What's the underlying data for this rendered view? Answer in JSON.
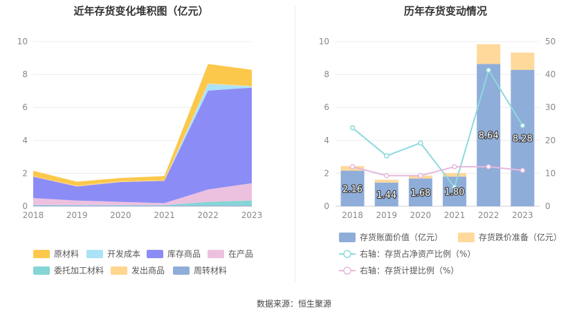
{
  "source_label": "数据来源：恒生聚源",
  "chart_data": [
    {
      "type": "area",
      "title": "近年存货变化堆积图（亿元）",
      "x": [
        "2018",
        "2019",
        "2020",
        "2021",
        "2022",
        "2023"
      ],
      "ylim": [
        0,
        10
      ],
      "yticks": [
        0,
        2,
        4,
        6,
        8,
        10
      ],
      "grid": true,
      "legend_position": "bottom",
      "series": [
        {
          "name": "周转材料",
          "color": "#8fadd9",
          "values": [
            0.06,
            0.05,
            0.05,
            0.05,
            0.05,
            0.05
          ]
        },
        {
          "name": "委托加工材料",
          "color": "#84d5d5",
          "values": [
            0.02,
            0.02,
            0.02,
            0.02,
            0.22,
            0.3
          ]
        },
        {
          "name": "在产品",
          "color": "#ecc1e0",
          "values": [
            0.42,
            0.28,
            0.2,
            0.12,
            0.75,
            1.05
          ]
        },
        {
          "name": "库存商品",
          "color": "#8c8cf6",
          "values": [
            1.3,
            0.85,
            1.2,
            1.35,
            6.0,
            5.8
          ]
        },
        {
          "name": "开发成本",
          "color": "#abe2f7",
          "values": [
            0.0,
            0.0,
            0.0,
            0.0,
            0.4,
            0.08
          ]
        },
        {
          "name": "发出商品",
          "color": "#ffd68f",
          "values": [
            0.02,
            0.05,
            0.05,
            0.04,
            0.05,
            0.02
          ]
        },
        {
          "name": "原材料",
          "color": "#fcc84b",
          "values": [
            0.33,
            0.24,
            0.2,
            0.25,
            1.17,
            0.98
          ]
        }
      ],
      "legend_order": [
        "原材料",
        "开发成本",
        "库存商品",
        "在产品",
        "委托加工材料",
        "发出商品",
        "周转材料"
      ]
    },
    {
      "type": "bar",
      "title": "历年存货变动情况",
      "categories": [
        "2018",
        "2019",
        "2020",
        "2021",
        "2022",
        "2023"
      ],
      "ylim_left": [
        0,
        10
      ],
      "yticks_left": [
        0,
        2,
        4,
        6,
        8,
        10
      ],
      "ylim_right": [
        0,
        50
      ],
      "yticks_right": [
        0,
        10,
        20,
        30,
        40,
        50
      ],
      "grid": true,
      "legend_position": "bottom",
      "bars": [
        {
          "name": "存货账面价值（亿元）",
          "color": "#8fadd9",
          "values": [
            2.16,
            1.44,
            1.68,
            1.8,
            8.64,
            8.28
          ]
        },
        {
          "name": "存货跌价准备（亿元）",
          "color": "#ffd99c",
          "values": [
            0.28,
            0.17,
            0.18,
            0.22,
            1.2,
            1.05
          ]
        }
      ],
      "bar_labels": [
        "2.16",
        "1.44",
        "1.68",
        "1.80",
        "8.64",
        "8.28"
      ],
      "lines": [
        {
          "name": "右轴：存货占净资产比例（%）",
          "color": "#8dd9dd",
          "values": [
            23.8,
            15.3,
            19.2,
            5.8,
            41.3,
            24.5
          ]
        },
        {
          "name": "右轴：存货计提比例（%）",
          "color": "#e6b8dc",
          "values": [
            12.0,
            9.3,
            9.3,
            12.0,
            12.0,
            10.9
          ]
        }
      ]
    }
  ]
}
